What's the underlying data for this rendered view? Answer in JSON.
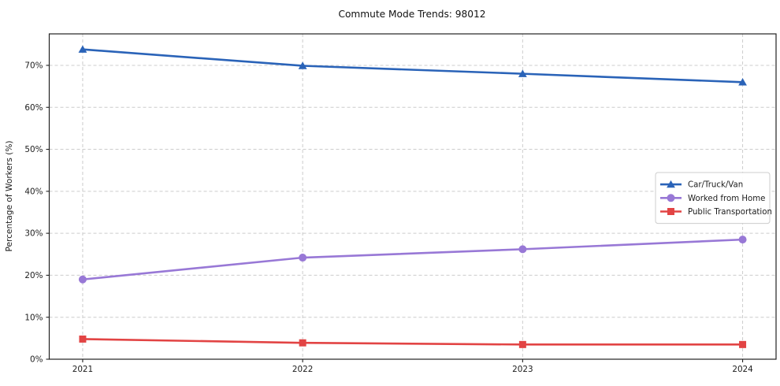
{
  "title": "Commute Mode Trends: 98012",
  "chart_data": {
    "type": "line",
    "title": "Commute Mode Trends: 98012",
    "xlabel": "",
    "ylabel": "Percentage of Workers (%)",
    "x": [
      2021,
      2022,
      2023,
      2024
    ],
    "x_tick_labels": [
      "2021",
      "2022",
      "2023",
      "2024"
    ],
    "y_ticks": [
      0,
      10,
      20,
      30,
      40,
      50,
      60,
      70
    ],
    "y_tick_labels": [
      "0%",
      "10%",
      "20%",
      "30%",
      "40%",
      "50%",
      "60%",
      "70%"
    ],
    "ylim": [
      0,
      77.5
    ],
    "grid": true,
    "grid_style": "dashed",
    "legend_position": "center-right",
    "series": [
      {
        "name": "Car/Truck/Van",
        "values": [
          73.8,
          69.9,
          68.0,
          66.0
        ],
        "color": "#2a63b8",
        "marker": "triangle"
      },
      {
        "name": "Worked from Home",
        "values": [
          19.0,
          24.2,
          26.2,
          28.5
        ],
        "color": "#9878d6",
        "marker": "circle"
      },
      {
        "name": "Public Transportation",
        "values": [
          4.8,
          3.9,
          3.5,
          3.5
        ],
        "color": "#e24444",
        "marker": "square"
      }
    ]
  },
  "colors": {
    "grid": "#cccccc",
    "spine": "#222222",
    "tick": "#222222",
    "text": "#1c1c1c",
    "legend_border": "#cccccc",
    "background": "#ffffff"
  }
}
